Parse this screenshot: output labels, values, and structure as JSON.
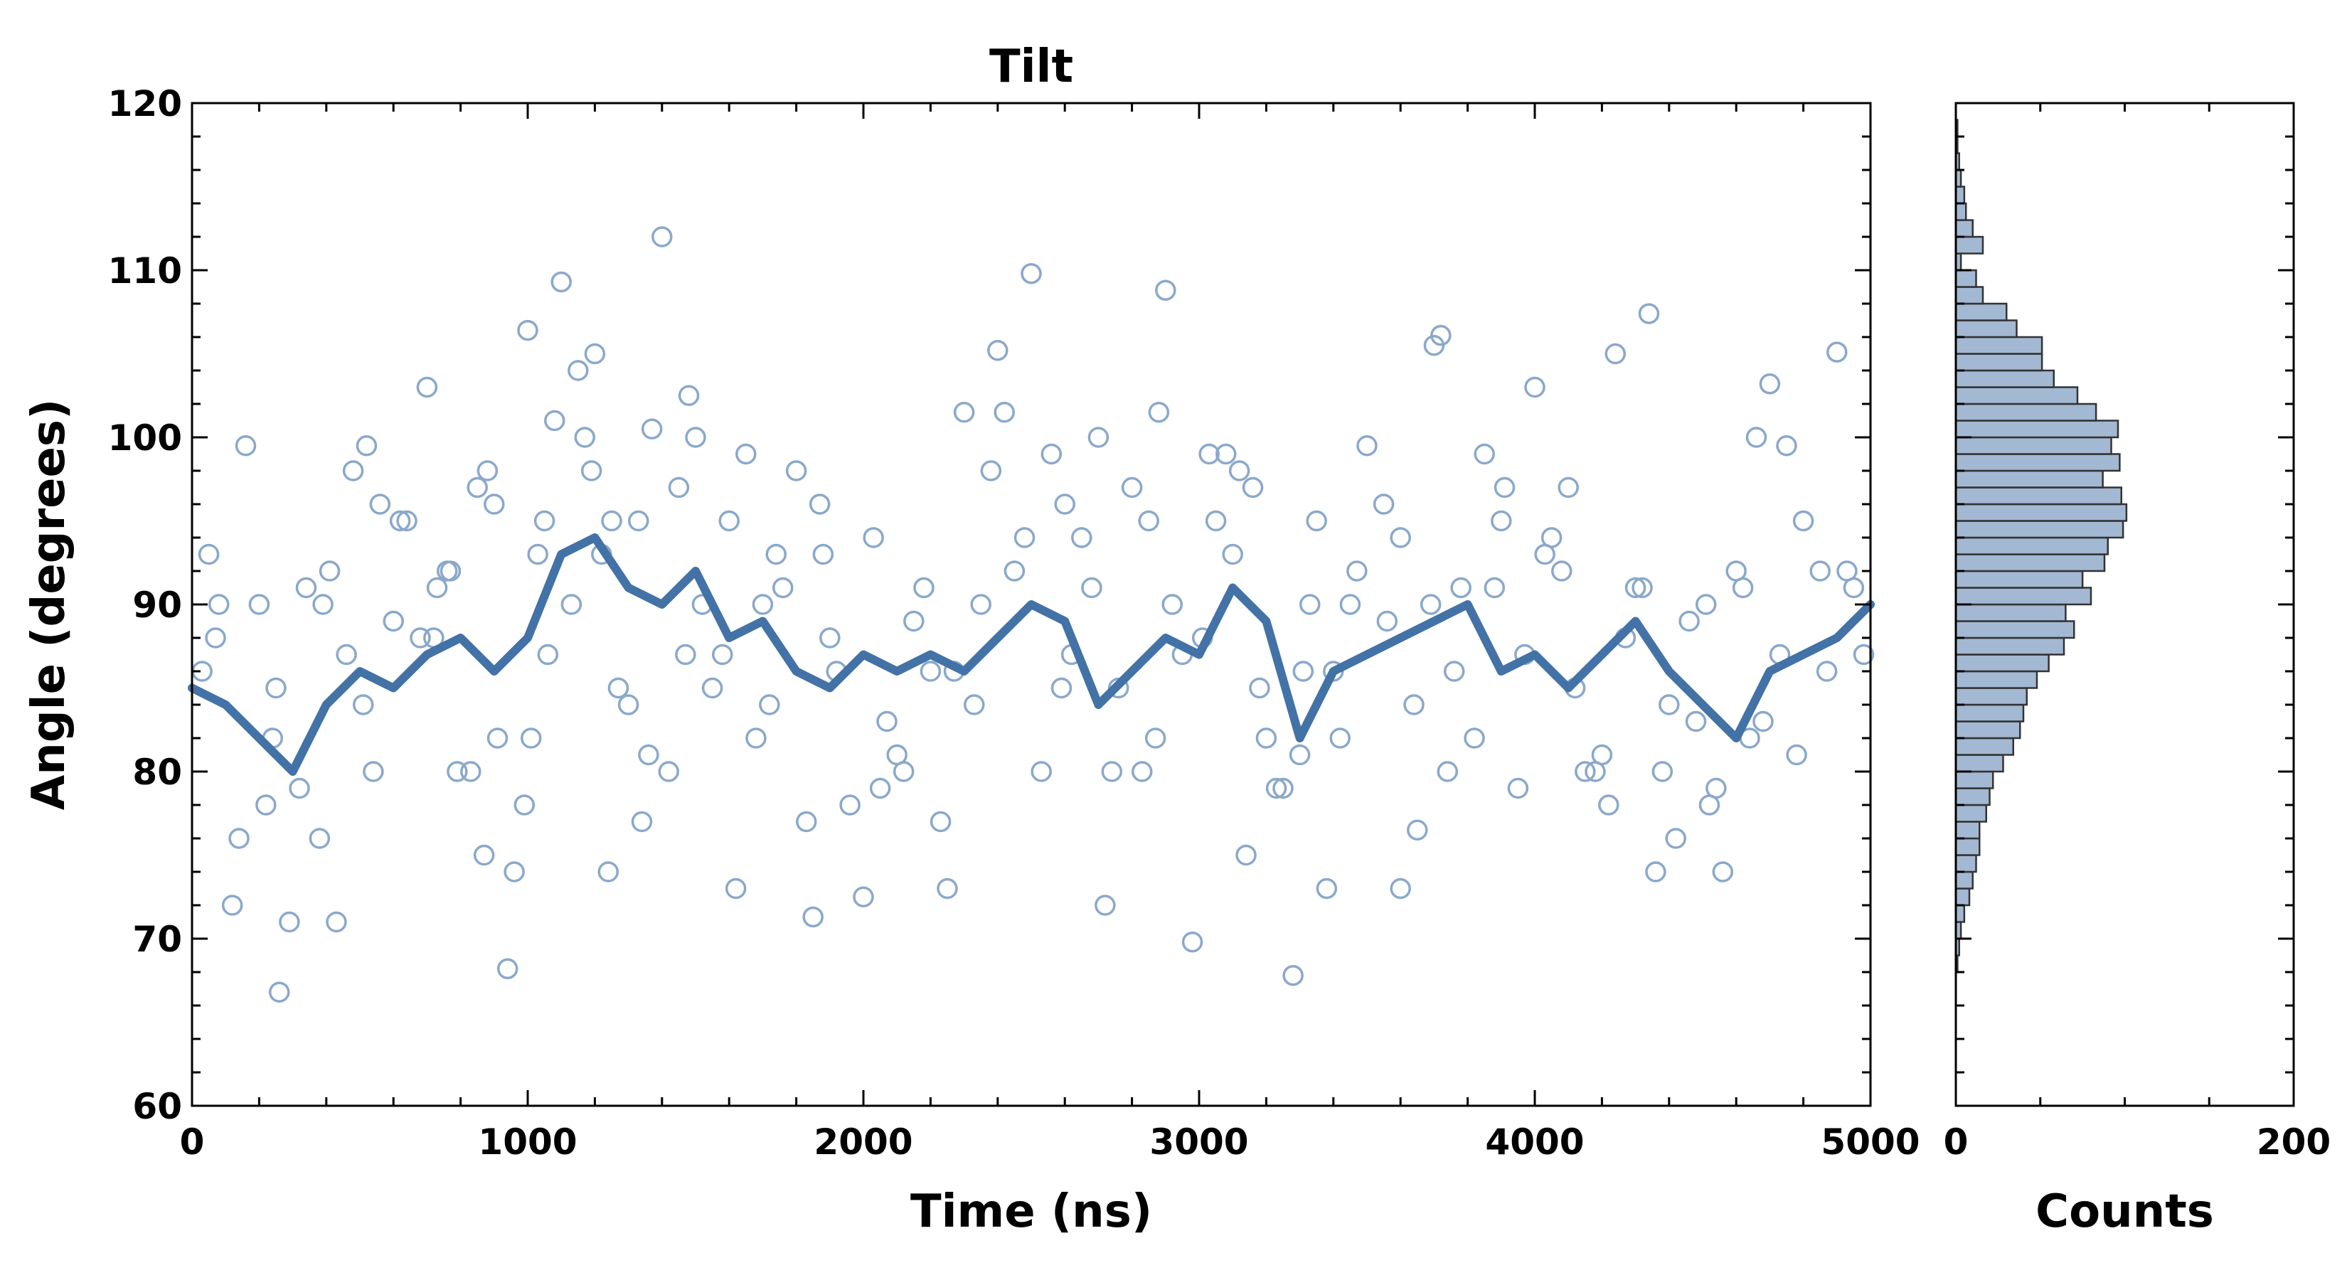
{
  "colors": {
    "accent": "#4372a6",
    "scatter_edge": "#8aa8cb",
    "hist_fill": "#a3b8d2",
    "hist_edge": "#333333",
    "axis": "#000000"
  },
  "chart_data": [
    {
      "type": "scatter",
      "title": "Tilt",
      "xlabel": "Time (ns)",
      "ylabel": "Angle (degrees)",
      "xlim": [
        0,
        5000
      ],
      "ylim": [
        60,
        120
      ],
      "xticks": [
        0,
        1000,
        2000,
        3000,
        4000,
        5000
      ],
      "yticks": [
        60,
        70,
        80,
        90,
        100,
        110,
        120
      ],
      "grid": false,
      "legend": "none",
      "series": [
        {
          "kind": "scatter",
          "marker": "open-circle",
          "points_x": [
            30,
            80,
            120,
            160,
            220,
            260,
            290,
            340,
            380,
            430,
            480,
            520,
            560,
            600,
            640,
            700,
            730,
            760,
            790,
            850,
            880,
            910,
            940,
            960,
            1000,
            1030,
            1050,
            1080,
            1100,
            1150,
            1170,
            1200,
            1220,
            1250,
            1300,
            1340,
            1370,
            1400,
            1450,
            1480,
            1500,
            1550,
            1600,
            1650,
            1700,
            1740,
            1800,
            1850,
            1880,
            1920,
            1960,
            2000,
            2050,
            2100,
            2150,
            2200,
            2250,
            2300,
            2350,
            2400,
            2420,
            2480,
            2500,
            2560,
            2600,
            2650,
            2700,
            2740,
            2800,
            2850,
            2880,
            2900,
            2950,
            2980,
            3050,
            3080,
            3120,
            3160,
            3200,
            3250,
            3280,
            3300,
            3350,
            3380,
            3420,
            3500,
            3550,
            3600,
            3650,
            3700,
            3720,
            3780,
            3850,
            3900,
            3950,
            4000,
            4050,
            4100,
            4150,
            4200,
            4240,
            4300,
            4340,
            4380,
            4420,
            4480,
            4520,
            4560,
            4620,
            4660,
            4700,
            4750,
            4800,
            4850,
            4900,
            4950,
            4980,
            50,
            140,
            200,
            250,
            320,
            410,
            460,
            540,
            620,
            680,
            770,
            830,
            900,
            990,
            1060,
            1130,
            1190,
            1270,
            1330,
            1420,
            1520,
            1580,
            1680,
            1760,
            1830,
            1900,
            2030,
            2120,
            2180,
            2270,
            2330,
            2450,
            2530,
            2620,
            2680,
            2760,
            2830,
            2920,
            3010,
            3100,
            3180,
            3230,
            3330,
            3400,
            3470,
            3560,
            3640,
            3690,
            3760,
            3820,
            3880,
            3970,
            4030,
            4120,
            4180,
            4270,
            4320,
            4400,
            4460,
            4540,
            4600,
            4680,
            4730,
            4780,
            4870,
            4930,
            70,
            240,
            390,
            510,
            720,
            870,
            1010,
            1240,
            1360,
            1470,
            1620,
            1720,
            1870,
            2070,
            2230,
            2380,
            2590,
            2720,
            2870,
            3030,
            3140,
            3310,
            3450,
            3600,
            3740,
            3910,
            4080,
            4220,
            4360,
            4510,
            4640,
            4820,
            4960
          ],
          "points_y": [
            86,
            90,
            72,
            99.5,
            78,
            66.8,
            71,
            91,
            76,
            71,
            98,
            99.5,
            96,
            89,
            95,
            103,
            91,
            92,
            80,
            97,
            98,
            82,
            68.2,
            74,
            106.4,
            93,
            95,
            101,
            109.3,
            104,
            100,
            105,
            93,
            95,
            84,
            77,
            100.5,
            112,
            97,
            102.5,
            100,
            85,
            95,
            99,
            90,
            93,
            98,
            71.3,
            93,
            86,
            78,
            72.5,
            79,
            81,
            89,
            86,
            73,
            101.5,
            90,
            105.2,
            101.5,
            94,
            109.8,
            99,
            96,
            94,
            100,
            80,
            97,
            95,
            101.5,
            108.8,
            87,
            69.8,
            95,
            99,
            98,
            97,
            82,
            79,
            67.8,
            81,
            95,
            73,
            82,
            99.5,
            96,
            94,
            76.5,
            105.5,
            106.1,
            91,
            99,
            95,
            79,
            103,
            94,
            97,
            80,
            81,
            105,
            91,
            107.4,
            80,
            76,
            83,
            78,
            74,
            91,
            100,
            103.2,
            99.5,
            95,
            92,
            105.1,
            91,
            87,
            93,
            76,
            90,
            85,
            79,
            92,
            87,
            80,
            95,
            88,
            92,
            80,
            96,
            78,
            87,
            90,
            98,
            85,
            95,
            80,
            90,
            87,
            82,
            91,
            77,
            88,
            94,
            80,
            91,
            86,
            84,
            92,
            80,
            87,
            91,
            85,
            80,
            90,
            88,
            93,
            85,
            79,
            90,
            86,
            92,
            89,
            84,
            90,
            86,
            82,
            91,
            87,
            93,
            85,
            80,
            88,
            91,
            84,
            89,
            79,
            92,
            83,
            87,
            81,
            86,
            92,
            88,
            82,
            90,
            84,
            88,
            75,
            82,
            74,
            81,
            87,
            73,
            84,
            96,
            83,
            77,
            98,
            85,
            72,
            82,
            99,
            75,
            86,
            90,
            73,
            80,
            97,
            92,
            78,
            74,
            90,
            82
          ]
        },
        {
          "kind": "line",
          "smoothing": "moving-average",
          "x": [
            0,
            100,
            200,
            300,
            400,
            500,
            600,
            700,
            800,
            900,
            1000,
            1100,
            1200,
            1300,
            1400,
            1500,
            1600,
            1700,
            1800,
            1900,
            2000,
            2100,
            2200,
            2300,
            2400,
            2500,
            2600,
            2700,
            2800,
            2900,
            3000,
            3100,
            3200,
            3300,
            3400,
            3500,
            3600,
            3700,
            3800,
            3900,
            4000,
            4100,
            4200,
            4300,
            4400,
            4500,
            4600,
            4700,
            4800,
            4900,
            5000
          ],
          "y": [
            85,
            84,
            82,
            80,
            84,
            86,
            85,
            87,
            88,
            86,
            88,
            93,
            94,
            91,
            90,
            92,
            88,
            89,
            86,
            85,
            87,
            86,
            87,
            86,
            88,
            90,
            89,
            84,
            86,
            88,
            87,
            91,
            89,
            82,
            86,
            87,
            88,
            89,
            90,
            86,
            87,
            85,
            87,
            89,
            86,
            84,
            82,
            86,
            87,
            88,
            90
          ]
        }
      ]
    },
    {
      "type": "bar",
      "orientation": "horizontal",
      "title": "",
      "xlabel": "Counts",
      "ylabel": "",
      "xlim": [
        0,
        200
      ],
      "ylim": [
        60,
        120
      ],
      "xticks": [
        0,
        200
      ],
      "bin_edges_start": 68,
      "bin_width": 1,
      "values": [
        1,
        2,
        3,
        5,
        8,
        10,
        12,
        14,
        14,
        18,
        20,
        22,
        28,
        34,
        38,
        40,
        42,
        48,
        55,
        64,
        70,
        65,
        80,
        75,
        88,
        90,
        99,
        101,
        98,
        87,
        97,
        92,
        96,
        83,
        72,
        58,
        51,
        51,
        36,
        30,
        16,
        12,
        3,
        16,
        10,
        6,
        5,
        3,
        2,
        1,
        1,
        0
      ]
    }
  ]
}
